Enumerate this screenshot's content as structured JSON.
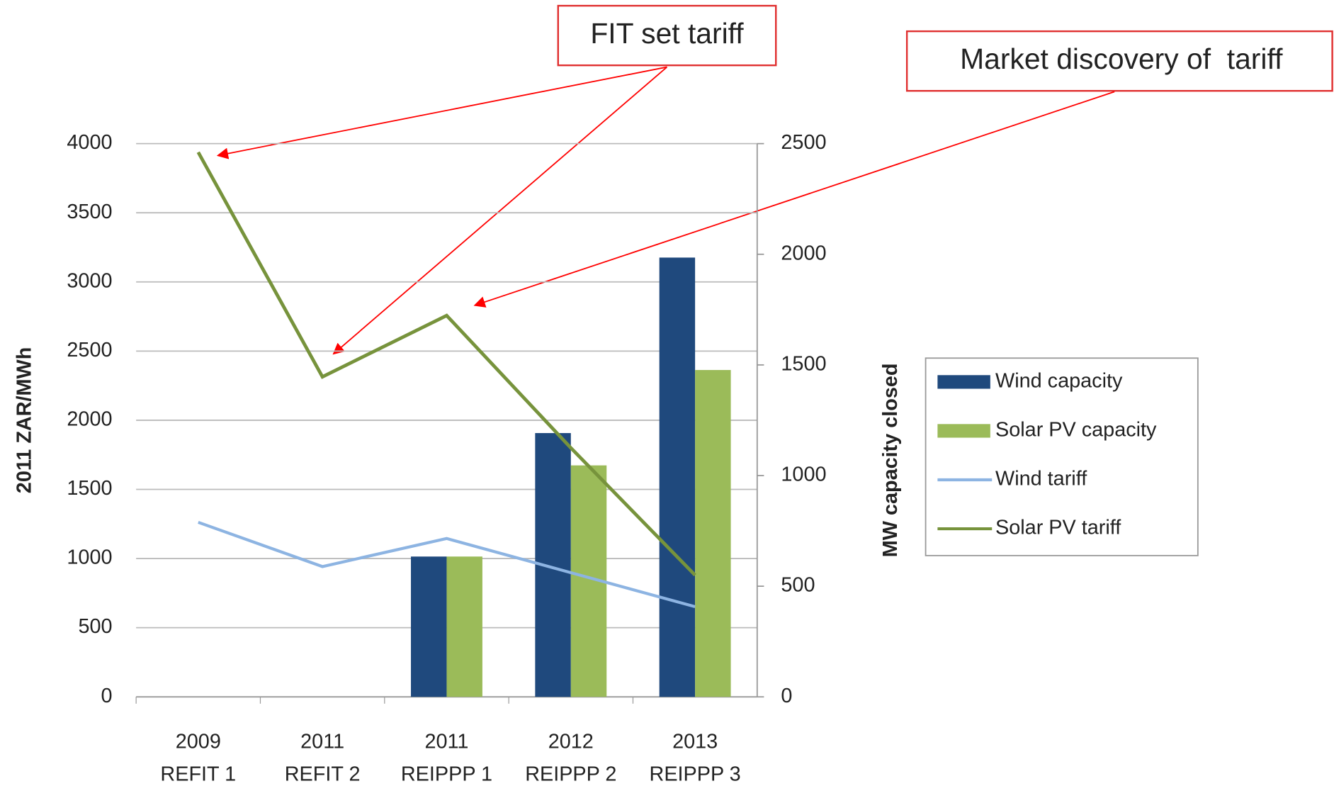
{
  "chart_data": {
    "type": "bar",
    "categories": [
      [
        "2009",
        "REFIT 1"
      ],
      [
        "2011",
        "REFIT 2"
      ],
      [
        "2011",
        "REIPPP 1"
      ],
      [
        "2012",
        "REIPPP 2"
      ],
      [
        "2013",
        "REIPPP 3"
      ]
    ],
    "ylabel": "2011 ZAR/MWh",
    "y2label": "MW capacity closed",
    "ylim": [
      0,
      4000
    ],
    "yticks": [
      0,
      500,
      1000,
      1500,
      2000,
      2500,
      3000,
      3500,
      4000
    ],
    "y2lim": [
      0,
      2500
    ],
    "y2ticks": [
      0,
      500,
      1000,
      1500,
      2000,
      2500
    ],
    "grid": true,
    "legend": "right",
    "annotations": [
      "FIT set tariff",
      "Market discovery of  tariff"
    ],
    "series": [
      {
        "name": "Wind capacity",
        "type": "bar",
        "axis": "y2",
        "color": "#1f497d",
        "values": [
          null,
          null,
          634,
          1192,
          1985
        ]
      },
      {
        "name": "Solar PV capacity",
        "type": "bar",
        "axis": "y2",
        "color": "#9bbb59",
        "values": [
          null,
          null,
          634,
          1046,
          1477
        ]
      },
      {
        "name": "Wind tariff",
        "type": "line",
        "color": "#8db4e2",
        "values": [
          1262,
          942,
          1145,
          898,
          652
        ]
      },
      {
        "name": "Solar PV tariff",
        "type": "line",
        "color": "#77933c",
        "values": [
          3938,
          2314,
          2757,
          1800,
          880
        ]
      }
    ]
  }
}
